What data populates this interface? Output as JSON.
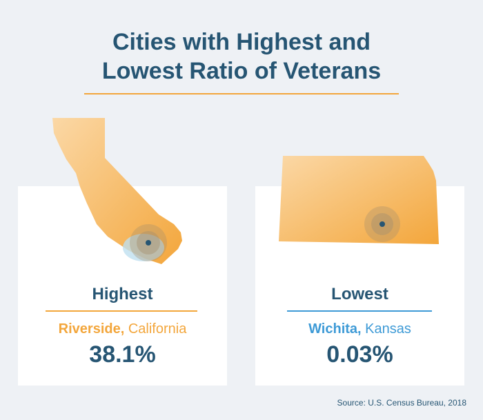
{
  "title": {
    "line1": "Cities with Highest and",
    "line2": "Lowest Ratio of Veterans"
  },
  "highest": {
    "label": "Highest",
    "city": "Riverside,",
    "state": " California",
    "value": "38.1%",
    "map_icon": "california-map-icon",
    "accent_color": "#f3a63b"
  },
  "lowest": {
    "label": "Lowest",
    "city": "Wichita,",
    "state": " Kansas",
    "value": "0.03%",
    "map_icon": "kansas-map-icon",
    "accent_color": "#3d9ad6"
  },
  "source": "Source: U.S. Census Bureau, 2018",
  "colors": {
    "background": "#eef1f5",
    "title": "#265573",
    "orange": "#f3a63b",
    "blue": "#3d9ad6"
  }
}
